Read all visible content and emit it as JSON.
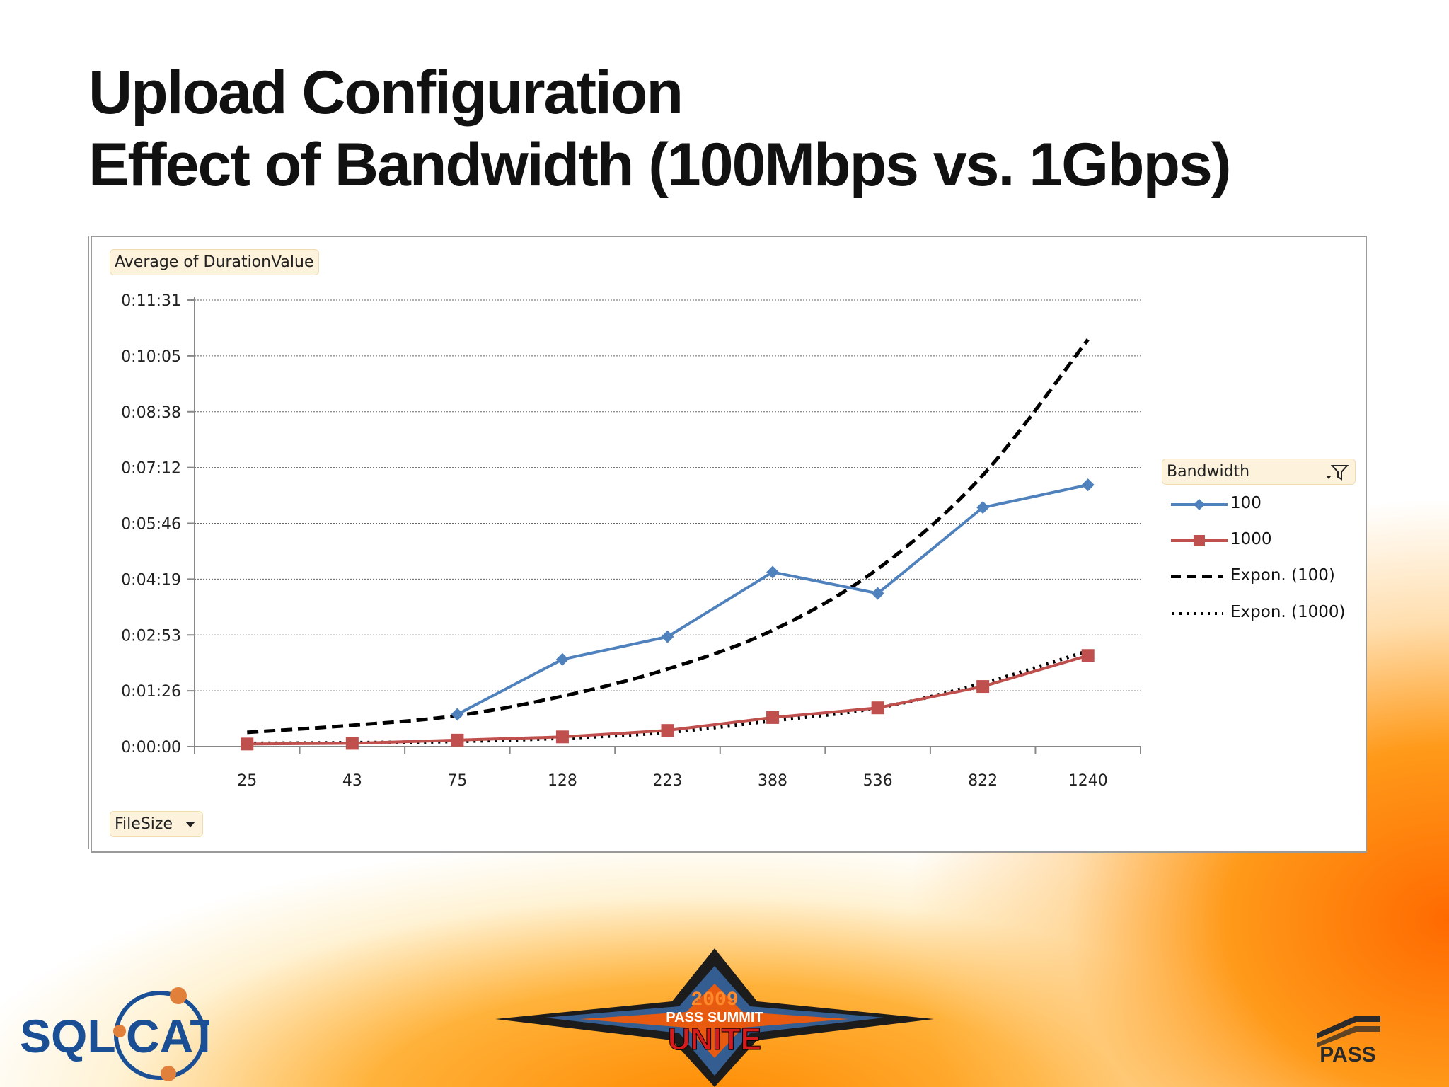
{
  "slide": {
    "title_line1": "Upload Configuration",
    "title_line2": "Effect of Bandwidth (100Mbps vs. 1Gbps)"
  },
  "pivot": {
    "measure_label": "Average of DurationValue",
    "axis_field_label": "FileSize",
    "legend_field_label": "Bandwidth"
  },
  "chart_data": {
    "type": "line",
    "categories": [
      "25",
      "43",
      "75",
      "128",
      "223",
      "388",
      "536",
      "822",
      "1240"
    ],
    "y_tick_labels": [
      "0:00:00",
      "0:01:26",
      "0:02:53",
      "0:04:19",
      "0:05:46",
      "0:07:12",
      "0:08:38",
      "0:10:05",
      "0:11:31"
    ],
    "ylim_seconds": [
      0,
      691
    ],
    "grid": true,
    "legend_position": "right",
    "series": [
      {
        "name": "100",
        "color": "#4f81bd",
        "marker": "diamond",
        "style": "solid",
        "values_seconds": [
          null,
          null,
          50,
          135,
          170,
          270,
          237,
          370,
          405
        ]
      },
      {
        "name": "1000",
        "color": "#c0504d",
        "marker": "square",
        "style": "solid",
        "values_seconds": [
          4,
          5,
          10,
          15,
          25,
          45,
          60,
          93,
          141
        ]
      },
      {
        "name": "Expon. (100)",
        "color": "#000000",
        "style": "dashed",
        "values_seconds": [
          22,
          33,
          48,
          78,
          120,
          180,
          275,
          420,
          630
        ]
      },
      {
        "name": "Expon. (1000)",
        "color": "#000000",
        "style": "dotted",
        "values_seconds": [
          5,
          6,
          8,
          13,
          22,
          40,
          60,
          98,
          148
        ]
      }
    ]
  },
  "logos": {
    "solcat_text_left": "SQL",
    "solcat_text_right": "CAT",
    "event_year": "2009",
    "event_name": "PASS SUMMIT",
    "event_theme": "UNITE",
    "pass_text": "PASS"
  }
}
